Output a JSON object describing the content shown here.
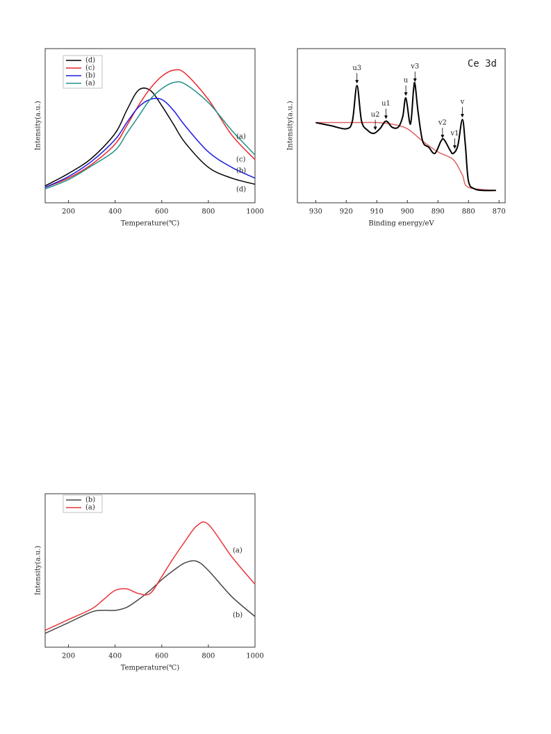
{
  "chart_data": [
    {
      "type": "line",
      "xlabel": "Temperature(℃)",
      "ylabel": "Intensity(a.u.)",
      "x": [
        100,
        200,
        300,
        400,
        450,
        500,
        550,
        600,
        650,
        700,
        800,
        900,
        1000
      ],
      "series": [
        {
          "name": "(d)",
          "color": "#000000",
          "values": [
            11,
            19,
            29,
            45,
            60,
            73,
            73,
            63,
            51,
            39,
            23,
            16,
            12
          ]
        },
        {
          "name": "(c)",
          "color": "#e8262a",
          "values": [
            10,
            16,
            25,
            38,
            50,
            63,
            74,
            82,
            86,
            84,
            67,
            44,
            28
          ]
        },
        {
          "name": "(b)",
          "color": "#1a1ae0",
          "values": [
            10,
            17,
            27,
            41,
            52,
            62,
            67,
            67,
            60,
            50,
            33,
            23,
            16
          ]
        },
        {
          "name": "(a)",
          "color": "#22918a",
          "values": [
            9,
            15,
            24,
            34,
            45,
            56,
            67,
            74,
            78,
            77,
            65,
            47,
            31
          ]
        }
      ],
      "annotations": [
        "(a)",
        "(c)",
        "(b)",
        "(d)"
      ],
      "xlim": [
        100,
        1000
      ],
      "xticks": [
        200,
        400,
        600,
        800,
        1000
      ],
      "ylim": [
        0,
        100
      ],
      "legend": "upper left"
    },
    {
      "type": "line",
      "title": "Ce 3d",
      "xlabel": "Binding energy/eV",
      "ylabel": "Intensity(a.u.)",
      "series": [
        {
          "color": "#e06060",
          "x": [
            930,
            918,
            910,
            905,
            900,
            895,
            890,
            885,
            882,
            880,
            871
          ],
          "values": [
            52,
            52,
            52,
            51,
            48,
            40,
            33,
            28,
            18,
            10,
            8
          ]
        },
        {
          "color": "#000000",
          "x": [
            930,
            925,
            920,
            918,
            916.5,
            915,
            913,
            911,
            909,
            907,
            905,
            903,
            901.5,
            900.5,
            899,
            898,
            897.5,
            896.5,
            895,
            893,
            891,
            889,
            888,
            886,
            885,
            883.5,
            882,
            881,
            880,
            878,
            875,
            871
          ],
          "values": [
            52,
            50,
            48,
            53,
            76,
            53,
            47,
            45,
            48,
            53,
            49,
            49,
            56,
            68,
            51,
            73,
            77,
            59,
            40,
            36,
            32,
            40,
            41,
            34,
            32,
            37,
            54,
            37,
            14,
            9,
            8,
            8
          ]
        }
      ],
      "peaks": [
        {
          "label": "u3",
          "x": 916.5
        },
        {
          "label": "u2",
          "x": 910.5
        },
        {
          "label": "u1",
          "x": 907
        },
        {
          "label": "u",
          "x": 900.5
        },
        {
          "label": "v3",
          "x": 897.5
        },
        {
          "label": "v2",
          "x": 888.5
        },
        {
          "label": "v1",
          "x": 884.5
        },
        {
          "label": "v",
          "x": 882
        }
      ],
      "xlim": [
        936,
        868
      ],
      "xticks": [
        930,
        920,
        910,
        900,
        890,
        880,
        870
      ],
      "ylim": [
        0,
        100
      ]
    },
    {
      "type": "line",
      "xlabel": "Temperature(℃)",
      "ylabel": "Intensity(a.u.)",
      "x": [
        100,
        200,
        300,
        350,
        400,
        450,
        500,
        550,
        600,
        650,
        700,
        750,
        800,
        900,
        1000
      ],
      "series": [
        {
          "name": "(b)",
          "color": "#444444",
          "values": [
            9,
            16,
            23,
            24,
            24,
            26,
            31,
            37,
            44,
            50,
            55,
            56,
            50,
            33,
            20
          ]
        },
        {
          "name": "(a)",
          "color": "#e8363a",
          "values": [
            11,
            18,
            25,
            31,
            37,
            38,
            35,
            35,
            46,
            58,
            69,
            79,
            80,
            59,
            41
          ]
        }
      ],
      "annotations": [
        "(a)",
        "(b)"
      ],
      "xlim": [
        100,
        1000
      ],
      "xticks": [
        200,
        400,
        600,
        800,
        1000
      ],
      "ylim": [
        0,
        100
      ],
      "legend": "upper left"
    }
  ]
}
